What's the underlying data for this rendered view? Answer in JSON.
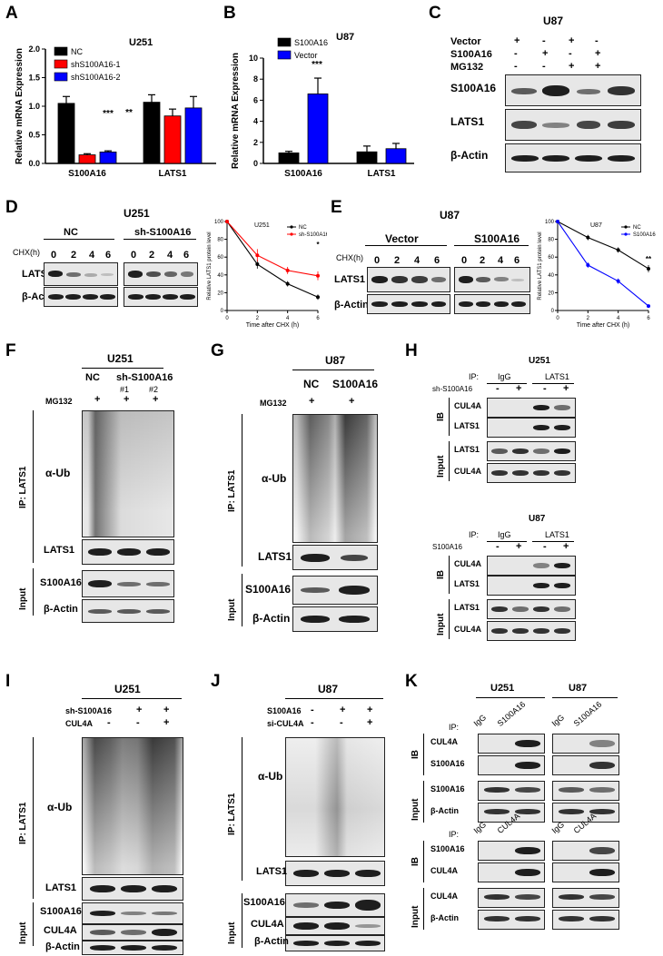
{
  "panels": {
    "A": {
      "letter": "A",
      "cell": "U251",
      "ylabel": "Relative mRNA Expression",
      "legend": [
        "NC",
        "shS100A16-1",
        "shS100A16-2"
      ],
      "yticks": [
        "0.0",
        "0.5",
        "1.0",
        "1.5",
        "2.0"
      ],
      "groups": [
        "S100A16",
        "LATS1"
      ],
      "sig": [
        "***",
        "**"
      ]
    },
    "B": {
      "letter": "B",
      "cell": "U87",
      "ylabel": "Relative mRNA Expression",
      "legend": [
        "S100A16",
        "Vector"
      ],
      "yticks": [
        "0",
        "2",
        "4",
        "6",
        "8",
        "10"
      ],
      "groups": [
        "S100A16",
        "LATS1"
      ],
      "sig": [
        "***"
      ]
    },
    "C": {
      "letter": "C",
      "cell": "U87",
      "rows": [
        {
          "label": "Vector",
          "marks": [
            "+",
            "-",
            "+",
            "-"
          ]
        },
        {
          "label": "S100A16",
          "marks": [
            "-",
            "+",
            "-",
            "+"
          ]
        },
        {
          "label": "MG132",
          "marks": [
            "-",
            "-",
            "+",
            "+"
          ]
        }
      ],
      "blots": [
        "S100A16",
        "LATS1",
        "β-Actin"
      ]
    },
    "D": {
      "letter": "D",
      "cell": "U251",
      "groups": [
        "NC",
        "sh-S100A16"
      ],
      "chx_label": "CHX(h)",
      "times": [
        "0",
        "2",
        "4",
        "6"
      ],
      "blots": [
        "LATS1",
        "β-Actin"
      ],
      "plot_title": "U251",
      "plot_ylabel": "Relative LATS1 protein level",
      "plot_xlabel": "Time after CHX (h)",
      "legend": [
        "NC",
        "sh-S100A16"
      ],
      "yticks": [
        "0",
        "20",
        "40",
        "60",
        "80",
        "100"
      ],
      "xticks": [
        "0",
        "2",
        "4",
        "6"
      ],
      "sig": "*"
    },
    "E": {
      "letter": "E",
      "cell": "U87",
      "groups": [
        "Vector",
        "S100A16"
      ],
      "chx_label": "CHX(h)",
      "times": [
        "0",
        "2",
        "4",
        "6"
      ],
      "blots": [
        "LATS1",
        "β-Actin"
      ],
      "plot_title": "U87",
      "plot_ylabel": "Relative LATS1 protein level",
      "plot_xlabel": "Time after CHX (h)",
      "legend": [
        "NC",
        "S100A16"
      ],
      "yticks": [
        "0",
        "20",
        "40",
        "60",
        "80",
        "100"
      ],
      "xticks": [
        "0",
        "2",
        "4",
        "6"
      ],
      "sig": "**"
    },
    "F": {
      "letter": "F",
      "cell": "U251",
      "groups": [
        "NC",
        "sh-S100A16"
      ],
      "subs": [
        "#1",
        "#2"
      ],
      "treat": "MG132",
      "marks": [
        "+",
        "+",
        "+"
      ],
      "ip": "IP: LATS1",
      "input": "Input",
      "blots": [
        "α-Ub",
        "LATS1",
        "S100A16",
        "β-Actin"
      ]
    },
    "G": {
      "letter": "G",
      "cell": "U87",
      "groups": [
        "NC",
        "S100A16"
      ],
      "treat": "MG132",
      "marks": [
        "+",
        "+"
      ],
      "ip": "IP: LATS1",
      "input": "Input",
      "blots": [
        "α-Ub",
        "LATS1",
        "S100A16",
        "β-Actin"
      ]
    },
    "H": {
      "letter": "H",
      "top": {
        "cell": "U251",
        "ip_label": "IP:",
        "ip_groups": [
          "IgG",
          "LATS1"
        ],
        "treat": "sh-S100A16",
        "marks": [
          "-",
          "+",
          "-",
          "+"
        ],
        "ib": "IB",
        "input": "Input",
        "blots": [
          "CUL4A",
          "LATS1",
          "LATS1",
          "CUL4A"
        ]
      },
      "bottom": {
        "cell": "U87",
        "ip_label": "IP:",
        "ip_groups": [
          "IgG",
          "LATS1"
        ],
        "treat": "S100A16",
        "marks": [
          "-",
          "+",
          "-",
          "+"
        ],
        "ib": "IB",
        "input": "Input",
        "blots": [
          "CUL4A",
          "LATS1",
          "LATS1",
          "CUL4A"
        ]
      }
    },
    "I": {
      "letter": "I",
      "cell": "U251",
      "rows": [
        {
          "label": "sh-S100A16",
          "marks": [
            "-",
            "+",
            "+"
          ]
        },
        {
          "label": "CUL4A",
          "marks": [
            "-",
            "-",
            "+"
          ]
        }
      ],
      "ip": "IP: LATS1",
      "input": "Input",
      "blots": [
        "α-Ub",
        "LATS1",
        "S100A16",
        "CUL4A",
        "β-Actin"
      ]
    },
    "J": {
      "letter": "J",
      "cell": "U87",
      "rows": [
        {
          "label": "S100A16",
          "marks": [
            "-",
            "+",
            "+"
          ]
        },
        {
          "label": "si-CUL4A",
          "marks": [
            "-",
            "-",
            "+"
          ]
        }
      ],
      "ip": "IP: LATS1",
      "input": "Input",
      "blots": [
        "α-Ub",
        "LATS1",
        "S100A16",
        "CUL4A",
        "β-Actin"
      ]
    },
    "K": {
      "letter": "K",
      "cells": [
        "U251",
        "U87"
      ],
      "top": {
        "ip_label": "IP:",
        "ip": [
          "IgG",
          "S100A16",
          "IgG",
          "S100A16"
        ],
        "ib": "IB",
        "input": "Input",
        "blots": [
          "CUL4A",
          "S100A16",
          "S100A16",
          "β-Actin"
        ]
      },
      "bottom": {
        "ip_label": "IP:",
        "ip": [
          "IgG",
          "CUL4A",
          "IgG",
          "CUL4A"
        ],
        "ib": "IB",
        "input": "Input",
        "blots": [
          "S100A16",
          "CUL4A",
          "CUL4A",
          "β-Actin"
        ]
      }
    }
  },
  "chart_data": [
    {
      "type": "bar",
      "categories": [
        "S100A16",
        "LATS1"
      ],
      "series": [
        {
          "name": "NC",
          "values": [
            1.05,
            1.07
          ],
          "errors": [
            0.12,
            0.13
          ]
        },
        {
          "name": "shS100A16-1",
          "values": [
            0.15,
            0.83
          ],
          "errors": [
            0.02,
            0.12
          ]
        },
        {
          "name": "shS100A16-2",
          "values": [
            0.2,
            0.97
          ],
          "errors": [
            0.02,
            0.2
          ]
        }
      ],
      "title": "U251",
      "ylabel": "Relative mRNA Expression",
      "ylim": [
        0,
        2
      ],
      "colors": [
        "#000000",
        "#ff0000",
        "#0000ff"
      ]
    },
    {
      "type": "bar",
      "categories": [
        "S100A16",
        "LATS1"
      ],
      "series": [
        {
          "name": "S100A16",
          "values": [
            1.0,
            1.1
          ],
          "errors": [
            0.15,
            0.55
          ]
        },
        {
          "name": "Vector",
          "values": [
            6.6,
            1.4
          ],
          "errors": [
            1.5,
            0.5
          ]
        }
      ],
      "title": "U87",
      "ylabel": "Relative mRNA Expression",
      "ylim": [
        0,
        10
      ],
      "colors": [
        "#000000",
        "#0000ff"
      ]
    },
    {
      "type": "line",
      "x": [
        0,
        2,
        4,
        6
      ],
      "series": [
        {
          "name": "NC",
          "values": [
            100,
            52,
            30,
            15
          ],
          "errors": [
            2,
            5,
            3,
            3
          ]
        },
        {
          "name": "sh-S100A16",
          "values": [
            100,
            62,
            45,
            39
          ],
          "errors": [
            2,
            7,
            4,
            5
          ]
        }
      ],
      "title": "U251",
      "xlabel": "Time after CHX (h)",
      "ylabel": "Relative LATS1 protein level",
      "xlim": [
        0,
        6
      ],
      "ylim": [
        0,
        100
      ],
      "colors": [
        "#000000",
        "#ff0000"
      ]
    },
    {
      "type": "line",
      "x": [
        0,
        2,
        4,
        6
      ],
      "series": [
        {
          "name": "NC",
          "values": [
            100,
            82,
            68,
            47
          ],
          "errors": [
            2,
            3,
            3,
            4
          ]
        },
        {
          "name": "S100A16",
          "values": [
            100,
            51,
            33,
            5
          ],
          "errors": [
            2,
            3,
            3,
            1
          ]
        }
      ],
      "title": "U87",
      "xlabel": "Time after CHX (h)",
      "ylabel": "Relative LATS1 protein level",
      "xlim": [
        0,
        6
      ],
      "ylim": [
        0,
        100
      ],
      "colors": [
        "#000000",
        "#0000ff"
      ]
    }
  ]
}
